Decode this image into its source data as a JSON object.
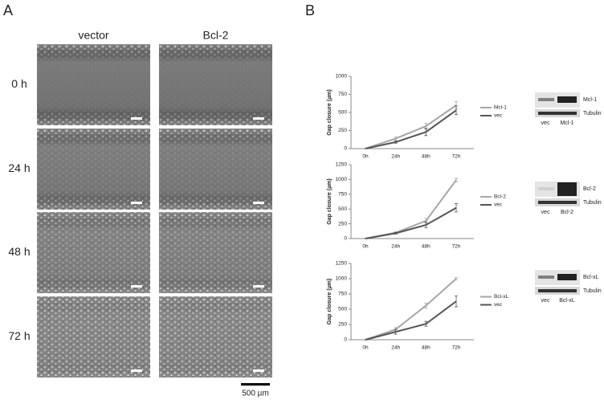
{
  "panel_a": {
    "label": "A",
    "columns": [
      "vector",
      "Bcl-2"
    ],
    "rows": [
      "0 h",
      "24 h",
      "48 h",
      "72 h"
    ],
    "scale_bar": "500 µm"
  },
  "panel_b": {
    "label": "B",
    "blots": [
      {
        "protein": "Mcl-1",
        "control": "Tubulin",
        "lanes": [
          "vec",
          "Mcl-1"
        ]
      },
      {
        "protein": "Bcl-2",
        "control": "Tubulin",
        "lanes": [
          "vec",
          "Bcl-2"
        ]
      },
      {
        "protein": "Bcl-xL",
        "control": "Tubulin",
        "lanes": [
          "vec",
          "Bcl-xL"
        ]
      }
    ]
  },
  "chart_data": [
    {
      "type": "line",
      "y_label": "Gap closure (µm)",
      "categories": [
        "0h",
        "24h",
        "48h",
        "72h"
      ],
      "ylim": [
        0,
        1000
      ],
      "yticks": [
        0,
        250,
        500,
        750,
        1000
      ],
      "series": [
        {
          "name": "Mcl-1",
          "color": "#a6a6a6",
          "values": [
            0,
            140,
            310,
            600
          ],
          "errors": [
            0,
            20,
            40,
            50
          ]
        },
        {
          "name": "vec",
          "color": "#555555",
          "values": [
            0,
            90,
            230,
            530
          ],
          "errors": [
            0,
            15,
            50,
            60
          ]
        }
      ]
    },
    {
      "type": "line",
      "y_label": "Gap closure (µm)",
      "categories": [
        "0h",
        "24h",
        "48h",
        "72h"
      ],
      "ylim": [
        0,
        1250
      ],
      "yticks": [
        0,
        250,
        500,
        750,
        1000,
        1250
      ],
      "series": [
        {
          "name": "Bcl-2",
          "color": "#a6a6a6",
          "values": [
            0,
            100,
            300,
            990
          ],
          "errors": [
            0,
            15,
            40,
            30
          ]
        },
        {
          "name": "vec",
          "color": "#555555",
          "values": [
            0,
            90,
            230,
            520
          ],
          "errors": [
            0,
            15,
            50,
            70
          ]
        }
      ]
    },
    {
      "type": "line",
      "y_label": "Gap closure (µm)",
      "categories": [
        "0h",
        "24h",
        "48h",
        "72h"
      ],
      "ylim": [
        0,
        1250
      ],
      "yticks": [
        0,
        250,
        500,
        750,
        1000,
        1250
      ],
      "series": [
        {
          "name": "Bcl-xL",
          "color": "#a6a6a6",
          "values": [
            0,
            170,
            560,
            1000
          ],
          "errors": [
            0,
            30,
            40,
            20
          ]
        },
        {
          "name": "vec",
          "color": "#555555",
          "values": [
            0,
            130,
            260,
            630
          ],
          "errors": [
            0,
            40,
            40,
            90
          ]
        }
      ]
    }
  ]
}
